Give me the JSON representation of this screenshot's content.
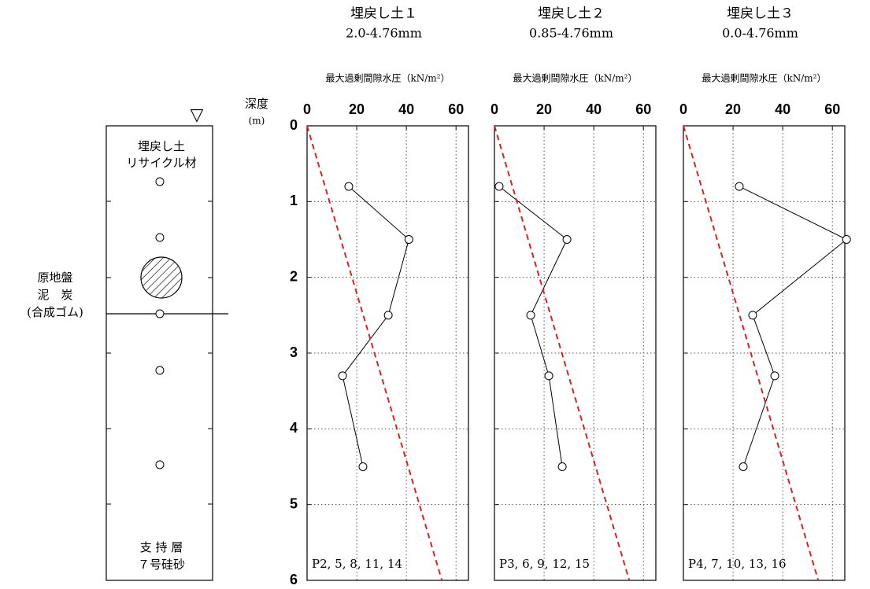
{
  "column": {
    "water_mark": "▽",
    "top_layer": [
      "埋戻し土",
      "リサイクル材"
    ],
    "middle_layer": [
      "原地盤",
      "泥　炭",
      "(合成ゴム)"
    ],
    "bottom_layer": [
      "支 持 層",
      "７号硅砂"
    ]
  },
  "y_axis_label": [
    "深度",
    "(m)"
  ],
  "chart_data": [
    {
      "type": "line",
      "title": "埋戻し土１",
      "subtitle": "2.0-4.76mm",
      "xlabel": "最大過剰間隙水圧（kN/m²）",
      "annotation": "P2, 5, 8, 11, 14",
      "xlim": [
        0,
        65
      ],
      "ylim": [
        0,
        6
      ],
      "xticks": [
        0,
        20,
        40,
        60
      ],
      "yticks": [
        0,
        1,
        2,
        3,
        4,
        5,
        6
      ],
      "ytick_labels": true,
      "grid": true,
      "series": [
        {
          "color": "#000000",
          "marker": true,
          "style": "solid",
          "x": [
            16.8,
            41,
            32.7,
            14.3,
            22.5
          ],
          "y": [
            0.8,
            1.5,
            2.5,
            3.3,
            4.5
          ]
        },
        {
          "color": "#e02020",
          "marker": false,
          "style": "dashed",
          "x": [
            0,
            54.3
          ],
          "y": [
            0,
            6
          ]
        }
      ]
    },
    {
      "type": "line",
      "title": "埋戻し土２",
      "subtitle": "0.85-4.76mm",
      "xlabel": "最大過剰間隙水圧（kN/m²）",
      "annotation": "P3, 6, 9, 12, 15",
      "xlim": [
        0,
        65
      ],
      "ylim": [
        0,
        6
      ],
      "xticks": [
        0,
        20,
        40,
        60
      ],
      "yticks": [
        0,
        1,
        2,
        3,
        4,
        5,
        6
      ],
      "ytick_labels": false,
      "grid": true,
      "series": [
        {
          "color": "#000000",
          "marker": true,
          "style": "solid",
          "x": [
            1.9,
            29.2,
            14.6,
            21.9,
            27.3
          ],
          "y": [
            0.8,
            1.5,
            2.5,
            3.3,
            4.5
          ]
        },
        {
          "color": "#e02020",
          "marker": false,
          "style": "dashed",
          "x": [
            0,
            54.3
          ],
          "y": [
            0,
            6
          ]
        }
      ]
    },
    {
      "type": "line",
      "title": "埋戻し土３",
      "subtitle": "0.0-4.76mm",
      "xlabel": "最大過剰間隙水圧（kN/m²）",
      "annotation": "P4, 7, 10, 13, 16",
      "xlim": [
        0,
        65
      ],
      "ylim": [
        0,
        6
      ],
      "xticks": [
        0,
        20,
        40,
        60
      ],
      "yticks": [
        0,
        1,
        2,
        3,
        4,
        5,
        6
      ],
      "ytick_labels": false,
      "grid": true,
      "series": [
        {
          "color": "#000000",
          "marker": true,
          "style": "solid",
          "x": [
            22.5,
            65.7,
            27.9,
            36.8,
            24.1
          ],
          "y": [
            0.8,
            1.5,
            2.5,
            3.3,
            4.5
          ]
        },
        {
          "color": "#e02020",
          "marker": false,
          "style": "dashed",
          "x": [
            0,
            54.3
          ],
          "y": [
            0,
            6
          ]
        }
      ]
    }
  ]
}
